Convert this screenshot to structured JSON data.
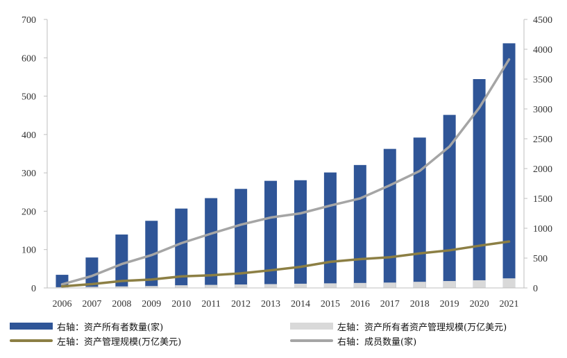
{
  "chart_data": {
    "type": "bar",
    "categories": [
      "2006",
      "2007",
      "2008",
      "2009",
      "2010",
      "2011",
      "2012",
      "2013",
      "2014",
      "2015",
      "2016",
      "2017",
      "2018",
      "2019",
      "2020",
      "2021"
    ],
    "series": [
      {
        "name": "右轴：资产所有者数量(家)",
        "kind": "bar",
        "axis": "right",
        "color": "#2f5597",
        "values": [
          220,
          510,
          895,
          1125,
          1330,
          1505,
          1660,
          1795,
          1805,
          1935,
          2060,
          2330,
          2520,
          2900,
          3500,
          4100
        ]
      },
      {
        "name": "左轴：资产所有者资产管理规模(万亿美元)",
        "kind": "bar",
        "axis": "left",
        "color": "#d9d9d9",
        "values": [
          2,
          3,
          4,
          5,
          7,
          8,
          9,
          10,
          11,
          12,
          13,
          14,
          16,
          18,
          20,
          25
        ]
      },
      {
        "name": "左轴：资产管理规模(万亿美元)",
        "kind": "line",
        "axis": "left",
        "color": "#8c7f44",
        "values": [
          4,
          10,
          18,
          22,
          30,
          33,
          38,
          46,
          55,
          68,
          75,
          80,
          90,
          98,
          110,
          121
        ]
      },
      {
        "name": "右轴：成员数量(家)",
        "kind": "line",
        "axis": "right",
        "color": "#a5a5a5",
        "values": [
          60,
          200,
          400,
          550,
          750,
          910,
          1060,
          1180,
          1250,
          1380,
          1500,
          1720,
          1960,
          2370,
          3020,
          3830
        ]
      }
    ],
    "y_left": {
      "min": 0,
      "max": 700,
      "ticks": [
        0,
        100,
        200,
        300,
        400,
        500,
        600,
        700
      ]
    },
    "y_right": {
      "min": 0,
      "max": 4500,
      "ticks": [
        0,
        500,
        1000,
        1500,
        2000,
        2500,
        3000,
        3500,
        4000,
        4500
      ]
    },
    "grid": false,
    "legend_position": "bottom"
  }
}
